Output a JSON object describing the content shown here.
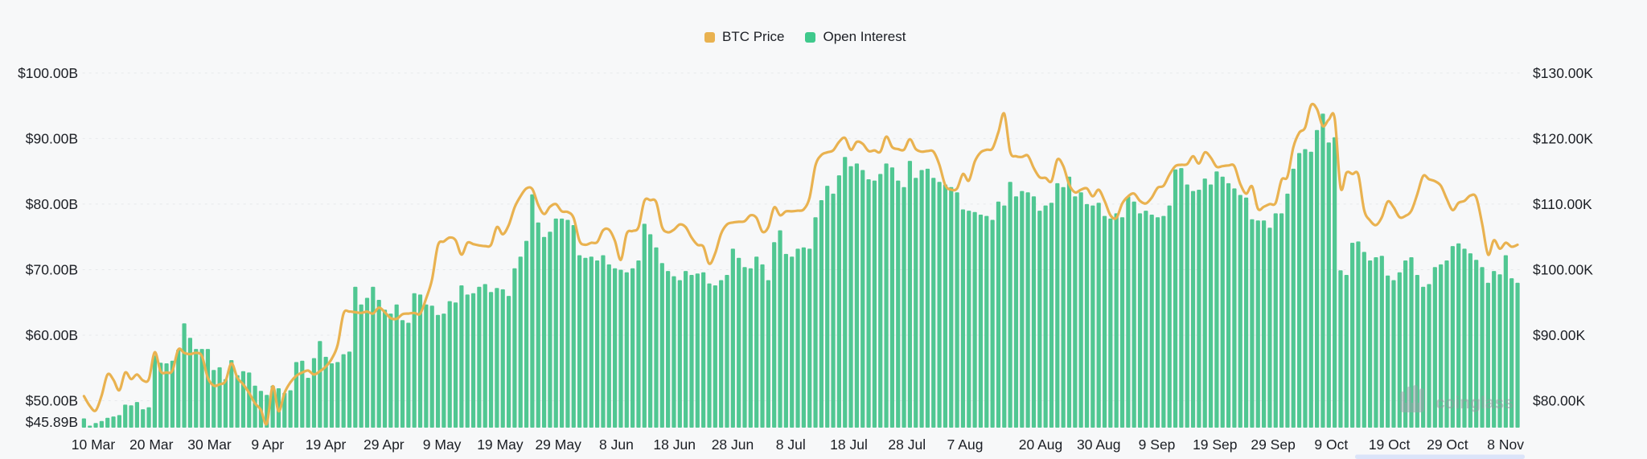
{
  "legend": {
    "series": [
      {
        "label": "BTC Price",
        "color": "#E9B250"
      },
      {
        "label": "Open Interest",
        "color": "#3FC98C"
      }
    ]
  },
  "watermark": {
    "text": "coinglass"
  },
  "chart_data": {
    "type": "bar+line",
    "x_start": "10 Mar",
    "x_end": "8 Nov",
    "x_tick_labels": [
      {
        "label": "10 Mar",
        "day": 0
      },
      {
        "label": "20 Mar",
        "day": 10
      },
      {
        "label": "30 Mar",
        "day": 20
      },
      {
        "label": "9 Apr",
        "day": 30
      },
      {
        "label": "19 Apr",
        "day": 40
      },
      {
        "label": "29 Apr",
        "day": 50
      },
      {
        "label": "9 May",
        "day": 60
      },
      {
        "label": "19 May",
        "day": 70
      },
      {
        "label": "29 May",
        "day": 80
      },
      {
        "label": "8 Jun",
        "day": 90
      },
      {
        "label": "18 Jun",
        "day": 100
      },
      {
        "label": "28 Jun",
        "day": 110
      },
      {
        "label": "8 Jul",
        "day": 120
      },
      {
        "label": "18 Jul",
        "day": 130
      },
      {
        "label": "28 Jul",
        "day": 140
      },
      {
        "label": "7 Aug",
        "day": 150
      },
      {
        "label": "20 Aug",
        "day": 163
      },
      {
        "label": "30 Aug",
        "day": 173
      },
      {
        "label": "9 Sep",
        "day": 183
      },
      {
        "label": "19 Sep",
        "day": 193
      },
      {
        "label": "29 Sep",
        "day": 203
      },
      {
        "label": "9 Oct",
        "day": 213
      },
      {
        "label": "19 Oct",
        "day": 223
      },
      {
        "label": "29 Oct",
        "day": 233
      },
      {
        "label": "8 Nov",
        "day": 243
      }
    ],
    "left_axis": {
      "labels": [
        "$100.00B",
        "$90.00B",
        "$80.00B",
        "$70.00B",
        "$60.00B",
        "$50.00B"
      ],
      "values": [
        100,
        90,
        80,
        70,
        60,
        50
      ],
      "baseline_label": "$45.89B",
      "baseline_value": 45.89
    },
    "right_axis": {
      "labels": [
        "$130.00K",
        "$120.00K",
        "$110.00K",
        "$100.00K",
        "$90.00K",
        "$80.00K"
      ],
      "values": [
        130,
        120,
        110,
        100,
        90,
        80
      ]
    },
    "series": [
      {
        "name": "Open Interest",
        "type": "bar",
        "axis": "left",
        "unit": "B USD",
        "color": "#50C792",
        "values": [
          47.3,
          46.2,
          46.6,
          46.9,
          47.4,
          47.6,
          47.8,
          49.4,
          49.3,
          49.8,
          48.7,
          49.0,
          56.9,
          55.8,
          55.7,
          56.1,
          57.8,
          61.8,
          59.6,
          57.9,
          57.9,
          57.9,
          54.7,
          55.1,
          53.3,
          56.2,
          53.9,
          54.5,
          54.3,
          52.3,
          51.5,
          50.9,
          52.3,
          51.9,
          51.2,
          51.6,
          55.9,
          56.1,
          53.5,
          56.5,
          59.1,
          56.7,
          55.7,
          55.9,
          57.1,
          57.5,
          67.4,
          64.7,
          65.7,
          67.4,
          65.4,
          63.9,
          63.3,
          64.7,
          62.3,
          61.9,
          66.4,
          66.2,
          64.7,
          64.5,
          63.1,
          63.3,
          65.2,
          65.0,
          67.6,
          66.2,
          66.4,
          67.4,
          67.8,
          66.6,
          67.2,
          67.0,
          66.0,
          70.2,
          72.0,
          74.4,
          81.5,
          77.2,
          75.0,
          75.8,
          77.8,
          77.8,
          77.6,
          76.8,
          72.2,
          71.8,
          72.0,
          71.4,
          72.2,
          70.8,
          70.2,
          70.0,
          69.6,
          70.2,
          71.4,
          77.0,
          75.4,
          73.4,
          71.0,
          69.8,
          69.0,
          68.4,
          69.8,
          69.2,
          69.4,
          69.6,
          67.9,
          67.6,
          68.4,
          69.2,
          73.2,
          71.8,
          70.4,
          70.2,
          72.0,
          70.8,
          68.4,
          74.2,
          76.0,
          72.4,
          72.0,
          73.2,
          73.4,
          73.2,
          78.0,
          80.6,
          82.8,
          81.6,
          84.4,
          87.2,
          85.8,
          86.2,
          85.2,
          83.8,
          83.6,
          84.6,
          86.2,
          85.6,
          83.6,
          82.6,
          86.6,
          84.0,
          85.2,
          85.4,
          84.0,
          83.4,
          83.0,
          82.6,
          81.8,
          79.2,
          79.0,
          78.8,
          78.4,
          78.2,
          77.6,
          80.4,
          79.8,
          83.4,
          81.2,
          82.0,
          81.8,
          81.2,
          79.0,
          79.8,
          80.2,
          83.2,
          82.6,
          84.2,
          81.2,
          81.8,
          80.0,
          79.8,
          80.2,
          78.2,
          77.8,
          78.6,
          78.0,
          81.2,
          80.4,
          78.6,
          79.0,
          78.4,
          78.0,
          78.2,
          79.8,
          85.3,
          85.5,
          83.0,
          82.0,
          82.2,
          83.9,
          83.0,
          85.0,
          84.2,
          83.2,
          82.4,
          81.4,
          81.0,
          77.7,
          77.5,
          77.5,
          76.4,
          78.6,
          78.6,
          81.6,
          85.4,
          87.8,
          88.4,
          88.0,
          91.3,
          93.8,
          89.4,
          90.2,
          69.9,
          69.2,
          74.1,
          74.3,
          72.7,
          71.4,
          71.9,
          72.1,
          69.1,
          68.4,
          69.6,
          71.4,
          71.9,
          69.2,
          67.4,
          67.8,
          70.4,
          70.8,
          71.4,
          73.6,
          74.0,
          73.2,
          72.5,
          71.5,
          70.4,
          68.0,
          69.8,
          69.3,
          72.2,
          68.7,
          68.0
        ]
      },
      {
        "name": "BTC Price",
        "type": "line",
        "axis": "right",
        "unit": "K USD",
        "color": "#E9B250",
        "values": [
          80.7,
          79.2,
          78.5,
          80.8,
          84.0,
          83.2,
          81.6,
          84.3,
          83.3,
          84.0,
          83.1,
          83.3,
          87.4,
          84.5,
          84.3,
          84.6,
          87.8,
          87.3,
          87.1,
          87.3,
          86.8,
          83.5,
          82.3,
          82.5,
          83.0,
          85.7,
          83.5,
          82.5,
          81.2,
          79.6,
          78.6,
          76.5,
          82.2,
          78.4,
          81.2,
          82.8,
          83.8,
          84.3,
          84.6,
          84.0,
          84.5,
          85.2,
          86.4,
          88.5,
          93.3,
          93.6,
          93.5,
          93.4,
          93.6,
          93.3,
          94.2,
          93.5,
          92.6,
          92.5,
          93.2,
          93.3,
          93.4,
          93.3,
          95.6,
          98.5,
          103.7,
          104.3,
          104.9,
          104.5,
          102.3,
          104.1,
          103.9,
          103.7,
          103.6,
          103.8,
          106.5,
          105.4,
          106.8,
          109.5,
          111.2,
          112.4,
          112.3,
          109.9,
          108.5,
          109.6,
          110.0,
          108.9,
          108.8,
          107.9,
          104.4,
          103.8,
          104.1,
          104.2,
          106.0,
          106.1,
          104.4,
          101.5,
          105.5,
          105.9,
          106.5,
          110.5,
          110.6,
          110.3,
          106.5,
          105.7,
          106.1,
          106.9,
          106.5,
          104.9,
          103.8,
          103.5,
          100.9,
          102.5,
          105.5,
          106.9,
          107.2,
          107.3,
          107.4,
          108.3,
          107.9,
          105.8,
          106.5,
          109.5,
          108.3,
          108.9,
          108.9,
          109.0,
          109.2,
          111.0,
          115.9,
          117.5,
          117.9,
          118.2,
          119.5,
          120.1,
          118.3,
          119.5,
          119.2,
          118.1,
          118.2,
          118.0,
          120.3,
          118.7,
          118.4,
          118.3,
          119.9,
          118.4,
          118.0,
          118.1,
          118.0,
          116.0,
          112.9,
          112.2,
          112.4,
          114.6,
          113.6,
          116.5,
          117.9,
          118.3,
          118.5,
          121.0,
          123.8,
          118.0,
          117.3,
          117.2,
          117.4,
          115.5,
          114.1,
          114.0,
          113.5,
          116.8,
          115.8,
          113.0,
          111.8,
          112.2,
          112.4,
          111.2,
          112.2,
          110.5,
          108.3,
          107.9,
          110.1,
          111.2,
          111.6,
          110.5,
          110.1,
          111.0,
          112.5,
          112.8,
          114.5,
          115.8,
          116.0,
          116.1,
          117.3,
          116.2,
          117.9,
          117.1,
          115.7,
          115.8,
          115.9,
          115.8,
          113.1,
          111.6,
          112.7,
          109.3,
          109.6,
          110.0,
          110.2,
          113.7,
          114.2,
          118.7,
          120.9,
          121.7,
          125.1,
          124.5,
          121.9,
          122.9,
          123.1,
          112.5,
          114.8,
          114.6,
          114.5,
          109.1,
          107.5,
          106.8,
          108.0,
          110.4,
          109.5,
          108.0,
          108.2,
          109.0,
          111.5,
          114.3,
          113.8,
          113.5,
          112.8,
          110.8,
          109.1,
          110.2,
          110.5,
          111.3,
          111.0,
          107.0,
          102.3,
          104.5,
          103.2,
          104.1,
          103.5,
          103.8
        ]
      }
    ],
    "grid": "horizontal-dashed",
    "legend_position": "top-center"
  }
}
